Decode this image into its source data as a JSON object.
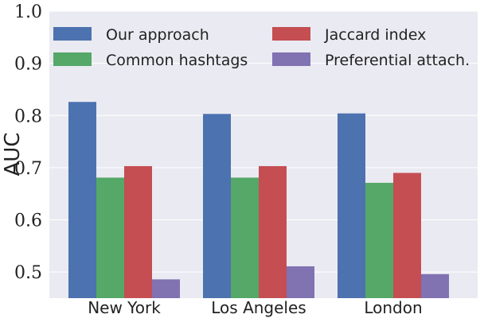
{
  "chart_data": {
    "type": "bar",
    "categories": [
      "New York",
      "Los Angeles",
      "London"
    ],
    "series": [
      {
        "name": "Our approach",
        "color": "#4c72b0",
        "values": [
          0.826,
          0.803,
          0.804
        ]
      },
      {
        "name": "Common hashtags",
        "color": "#55a868",
        "values": [
          0.681,
          0.681,
          0.671
        ]
      },
      {
        "name": "Jaccard index",
        "color": "#c44e52",
        "values": [
          0.703,
          0.703,
          0.69
        ]
      },
      {
        "name": "Preferential attach.",
        "color": "#8172b2",
        "values": [
          0.486,
          0.511,
          0.496
        ]
      }
    ],
    "ylabel": "AUC",
    "xlabel": "",
    "ylim": [
      0.45,
      1.0
    ],
    "yticks": [
      "0.5",
      "0.6",
      "0.7",
      "0.8",
      "0.9",
      "1.0"
    ],
    "grid": true,
    "legend_position": "top",
    "legend_columns": 2,
    "background": "#eaeaf2"
  }
}
